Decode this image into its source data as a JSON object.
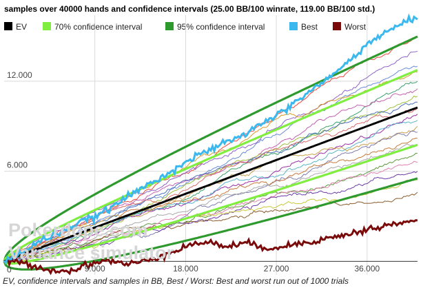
{
  "caption": "EV, confidence intervals and samples in BB, Best / Worst: Best and worst run out of 1000 trials",
  "watermark": {
    "line1": "Pokerdope.com",
    "line2": "Variance simulator"
  },
  "colors": {
    "ev": "#000000",
    "ci70": "#80ee40",
    "ci95": "#2e9a2e",
    "best": "#3bb8ee",
    "worst": "#7a0a0a",
    "samples": [
      "#e8473b",
      "#8f62c8",
      "#6a8bd6",
      "#d79a2a",
      "#3aa06e",
      "#c35fb0",
      "#a0c03a",
      "#4a6fb8",
      "#d86a6a",
      "#9a2ea8",
      "#5ab4c8",
      "#c8a04a",
      "#7d7db0",
      "#c87a3a",
      "#a8a8a8",
      "#5a9a3a",
      "#e07fb0",
      "#6a3aa8",
      "#c8c83a",
      "#8a5a2a"
    ]
  },
  "chart_data": {
    "type": "line",
    "title": "samples over 40000 hands and confidence intervals (25.00 BB/100 winrate, 119.00 BB/100 std.)",
    "xlabel": "",
    "ylabel": "",
    "xlim": [
      0,
      41000
    ],
    "ylim": [
      -900,
      16400
    ],
    "x_ticks": [
      {
        "value": 9000,
        "label": "9.000"
      },
      {
        "value": 18000,
        "label": "18.000"
      },
      {
        "value": 27000,
        "label": "27.000"
      },
      {
        "value": 36000,
        "label": "36.000"
      }
    ],
    "y_ticks": [
      {
        "value": 0,
        "label": "0"
      },
      {
        "value": 6000,
        "label": "6.000"
      },
      {
        "value": 12000,
        "label": "12.000"
      }
    ],
    "grid": true,
    "legend_position": "top",
    "legend": [
      {
        "key": "ev",
        "name": "EV"
      },
      {
        "key": "ci70",
        "name": "70% confidence interval"
      },
      {
        "key": "ci95",
        "name": "95% confidence interval"
      },
      {
        "key": "best",
        "name": "Best"
      },
      {
        "key": "worst",
        "name": "Worst"
      }
    ],
    "winrate_bb_per_100": 25.0,
    "std_bb_per_100": 119.0,
    "hands": 40000,
    "best_anchors": [
      [
        0,
        0
      ],
      [
        2000,
        700
      ],
      [
        4000,
        1500
      ],
      [
        6000,
        2100
      ],
      [
        8000,
        2700
      ],
      [
        10000,
        3300
      ],
      [
        12000,
        4200
      ],
      [
        14000,
        5000
      ],
      [
        16000,
        5800
      ],
      [
        18000,
        6600
      ],
      [
        20000,
        7300
      ],
      [
        22000,
        7900
      ],
      [
        24000,
        8500
      ],
      [
        26000,
        9400
      ],
      [
        28000,
        10100
      ],
      [
        30000,
        11200
      ],
      [
        32000,
        12100
      ],
      [
        34000,
        13200
      ],
      [
        36000,
        14500
      ],
      [
        38000,
        15300
      ],
      [
        40000,
        16000
      ],
      [
        41000,
        16200
      ]
    ],
    "worst_anchors": [
      [
        0,
        0
      ],
      [
        2000,
        -100
      ],
      [
        4000,
        -500
      ],
      [
        6000,
        -700
      ],
      [
        8000,
        -300
      ],
      [
        10000,
        100
      ],
      [
        12000,
        -200
      ],
      [
        14000,
        0
      ],
      [
        16000,
        500
      ],
      [
        18000,
        1000
      ],
      [
        20000,
        1300
      ],
      [
        22000,
        1000
      ],
      [
        24000,
        1200
      ],
      [
        26000,
        900
      ],
      [
        28000,
        1000
      ],
      [
        30000,
        1300
      ],
      [
        32000,
        1500
      ],
      [
        34000,
        1800
      ],
      [
        36000,
        2100
      ],
      [
        38000,
        2400
      ],
      [
        40000,
        2600
      ],
      [
        41000,
        2700
      ]
    ],
    "sample_endpoints": [
      15000,
      14000,
      13000,
      12600,
      12000,
      11500,
      11000,
      10600,
      10200,
      9800,
      9400,
      9000,
      8600,
      8200,
      7800,
      7200,
      6600,
      6000,
      5400,
      4600
    ]
  }
}
